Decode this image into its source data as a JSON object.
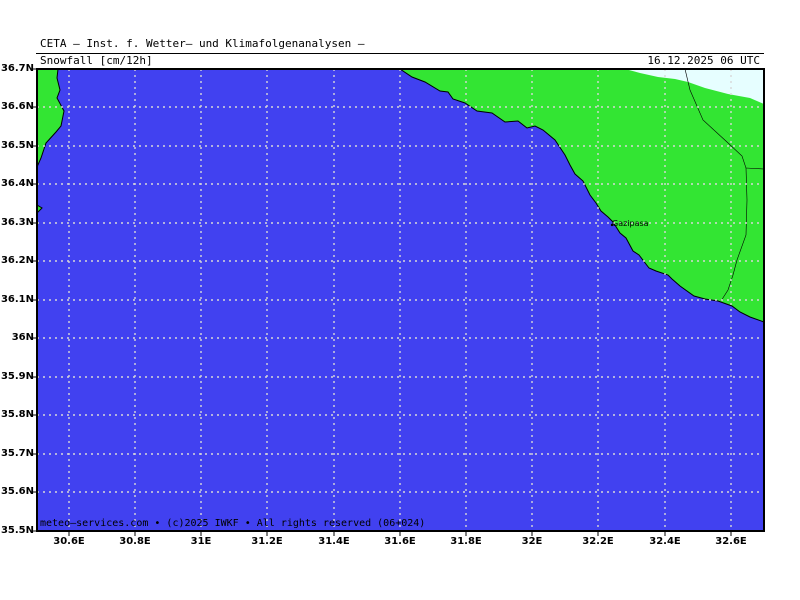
{
  "header": {
    "title": "CETA — Inst. f. Wetter— und Klimafolgenanalysen —",
    "parameter": "Snowfall [cm/12h]",
    "valid_time": "16.12.2025 06 UTC"
  },
  "footer": {
    "copyright": "meteo—services.com • (c)2025 IWKF • All rights reserved (06+024)"
  },
  "map": {
    "lat_labels": [
      "36.7N",
      "36.6N",
      "36.5N",
      "36.4N",
      "36.3N",
      "36.2N",
      "36.1N",
      "36N",
      "35.9N",
      "35.8N",
      "35.7N",
      "35.6N",
      "35.5N"
    ],
    "lon_labels": [
      "30.6E",
      "30.8E",
      "31E",
      "31.2E",
      "31.4E",
      "31.6E",
      "31.8E",
      "32E",
      "32.2E",
      "32.4E",
      "32.6E"
    ],
    "place_name": "Gazipasa",
    "colors": {
      "sea": "#4141f0",
      "land": "#33e533",
      "snow": "#e6feff"
    }
  }
}
